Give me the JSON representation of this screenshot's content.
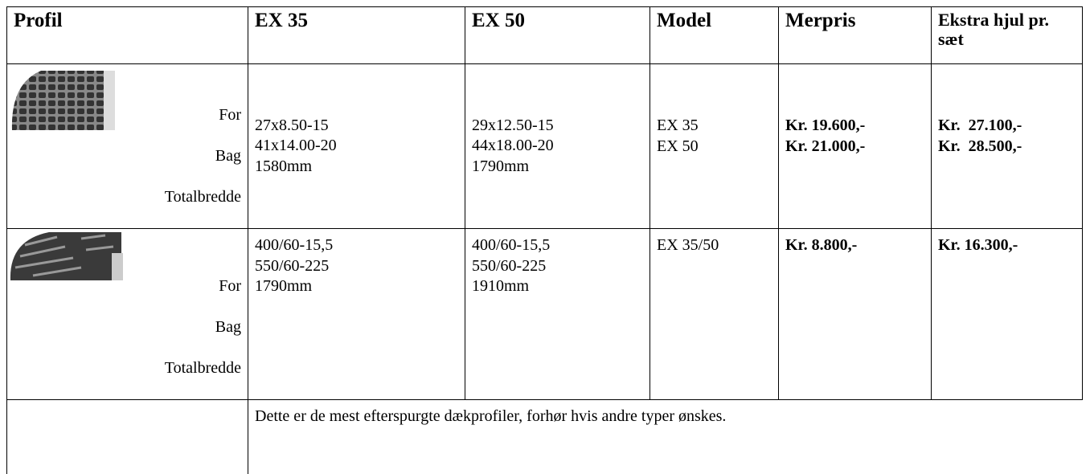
{
  "table": {
    "header": [
      "Profil",
      "EX 35",
      "EX 50",
      "Model",
      "Merpris",
      "Ekstra hjul pr. sæt"
    ],
    "rows": [
      {
        "labels": [
          "For",
          "Bag",
          "Totalbredde"
        ],
        "ex35": [
          "27x8.50-15",
          "41x14.00-20",
          "1580mm"
        ],
        "ex50": [
          "29x12.50-15",
          "44x18.00-20",
          "1790mm"
        ],
        "model": [
          "EX 35",
          "EX 50"
        ],
        "merpris": [
          "Kr. 19.600,-",
          "Kr. 21.000,-"
        ],
        "ekstra": [
          "Kr.  27.100,-",
          "Kr.  28.500,-"
        ]
      },
      {
        "labels": [
          "For",
          "Bag",
          "Totalbredde"
        ],
        "ex35": [
          "400/60-15,5",
          "550/60-225",
          "1790mm"
        ],
        "ex50": [
          "400/60-15,5",
          "550/60-225",
          "1910mm"
        ],
        "model": [
          "EX 35/50"
        ],
        "merpris": [
          "Kr. 8.800,-"
        ],
        "ekstra": [
          "Kr. 16.300,-"
        ]
      }
    ],
    "note": "Dette er de mest efterspurgte dækprofiler, forhør hvis andre typer ønskes."
  }
}
